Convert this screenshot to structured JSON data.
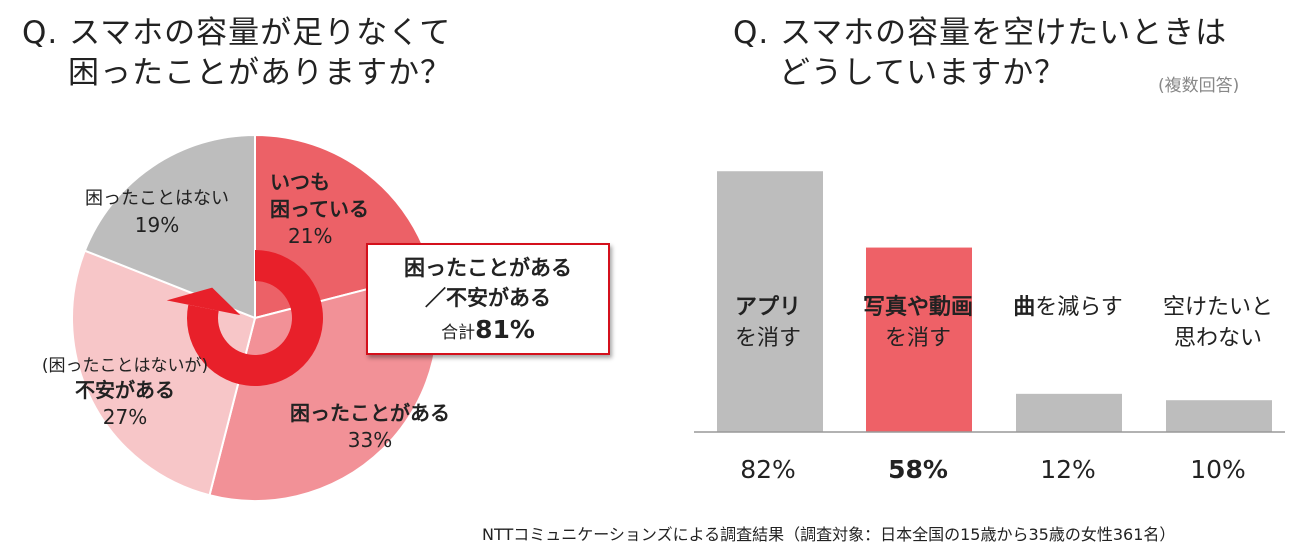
{
  "left_title": {
    "line1": "Q. スマホの容量が足りなくて",
    "line2": "困ったことがありますか？"
  },
  "right_title": {
    "line1": "Q. スマホの容量を空けたいときは",
    "line2": "どうしていますか？",
    "note": "(複数回答)"
  },
  "pie_labels": {
    "always": {
      "line1": "いつも",
      "line2": "困っている",
      "pct": "21%"
    },
    "sometimes": {
      "line1": "困ったことがある",
      "pct": "33%"
    },
    "anxious": {
      "pre": "(困ったことはないが)",
      "line1": "不安がある",
      "pct": "27%"
    },
    "never": {
      "line1": "困ったことはない",
      "pct": "19%"
    }
  },
  "callout": {
    "line1": "困ったことがある",
    "line2": "／不安がある",
    "total_label": "合計",
    "total_value": "81%"
  },
  "bar_labels": [
    {
      "bold": "アプリ",
      "rest": "",
      "line2": "を消す",
      "pct": "82%"
    },
    {
      "bold": "写真や動画",
      "rest": "",
      "line2": "を消す",
      "pct": "58%"
    },
    {
      "bold": "曲",
      "rest": "を減らす",
      "line2": "",
      "pct": "12%"
    },
    {
      "bold": "",
      "rest": "空けたいと",
      "line2": "思わない",
      "pct": "10%"
    }
  ],
  "footer": "NTTコミュニケーションズによる調査結果（調査対象：日本全国の15歳から35歳の女性361名）",
  "colors": {
    "accent": "#e8202a",
    "highlight_bar": "#ee6167",
    "gray": "#bdbdbd"
  },
  "chart_data": [
    {
      "type": "pie",
      "title": "Q. スマホの容量が足りなくて困ったことがありますか？",
      "slices": [
        {
          "name": "いつも困っている",
          "value": 21,
          "color": "#ec6167"
        },
        {
          "name": "困ったことがある",
          "value": 33,
          "color": "#f29197"
        },
        {
          "name": "(困ったことはないが)不安がある",
          "value": 27,
          "color": "#f7c6c8"
        },
        {
          "name": "困ったことはない",
          "value": 19,
          "color": "#bdbdbd"
        }
      ],
      "annotation": "困ったことがある／不安がある 合計81%"
    },
    {
      "type": "bar",
      "title": "Q. スマホの容量を空けたいときはどうしていますか？",
      "note": "(複数回答)",
      "categories": [
        "アプリを消す",
        "写真や動画を消す",
        "曲を減らす",
        "空けたいと思わない"
      ],
      "values": [
        82,
        58,
        12,
        10
      ],
      "colors": [
        "#bdbdbd",
        "#ee6167",
        "#bdbdbd",
        "#bdbdbd"
      ],
      "ylim": [
        0,
        100
      ]
    }
  ]
}
